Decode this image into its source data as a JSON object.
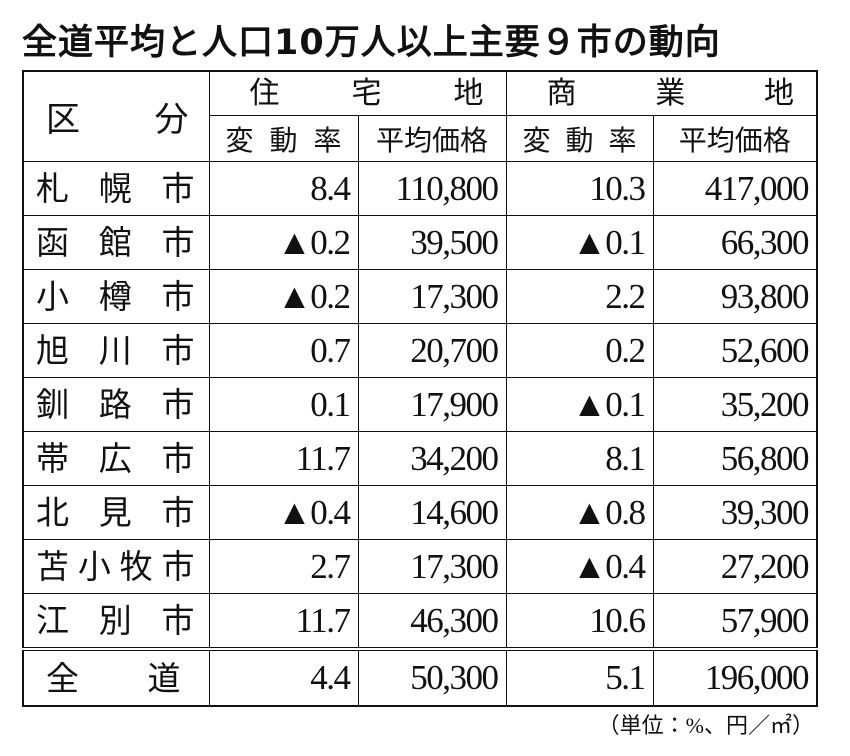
{
  "title": "全道平均と人口10万人以上主要９市の動向",
  "table": {
    "header": {
      "category": "区分",
      "groups": [
        "住宅地",
        "商業地"
      ],
      "columns": [
        "変動率",
        "平均価格",
        "変動率",
        "平均価格"
      ]
    },
    "rows": [
      [
        "札幌市",
        "8.4",
        "110,800",
        "10.3",
        "417,000"
      ],
      [
        "函館市",
        "▲0.2",
        "39,500",
        "▲0.1",
        "66,300"
      ],
      [
        "小樽市",
        "▲0.2",
        "17,300",
        "2.2",
        "93,800"
      ],
      [
        "旭川市",
        "0.7",
        "20,700",
        "0.2",
        "52,600"
      ],
      [
        "釧路市",
        "0.1",
        "17,900",
        "▲0.1",
        "35,200"
      ],
      [
        "帯広市",
        "11.7",
        "34,200",
        "8.1",
        "56,800"
      ],
      [
        "北見市",
        "▲0.4",
        "14,600",
        "▲0.8",
        "39,300"
      ],
      [
        "苫小牧市",
        "2.7",
        "17,300",
        "▲0.4",
        "27,200"
      ],
      [
        "江別市",
        "11.7",
        "46,300",
        "10.6",
        "57,900"
      ]
    ],
    "total": [
      "全道",
      "4.4",
      "50,300",
      "5.1",
      "196,000"
    ]
  },
  "note": "（単位：%、円／㎡）"
}
